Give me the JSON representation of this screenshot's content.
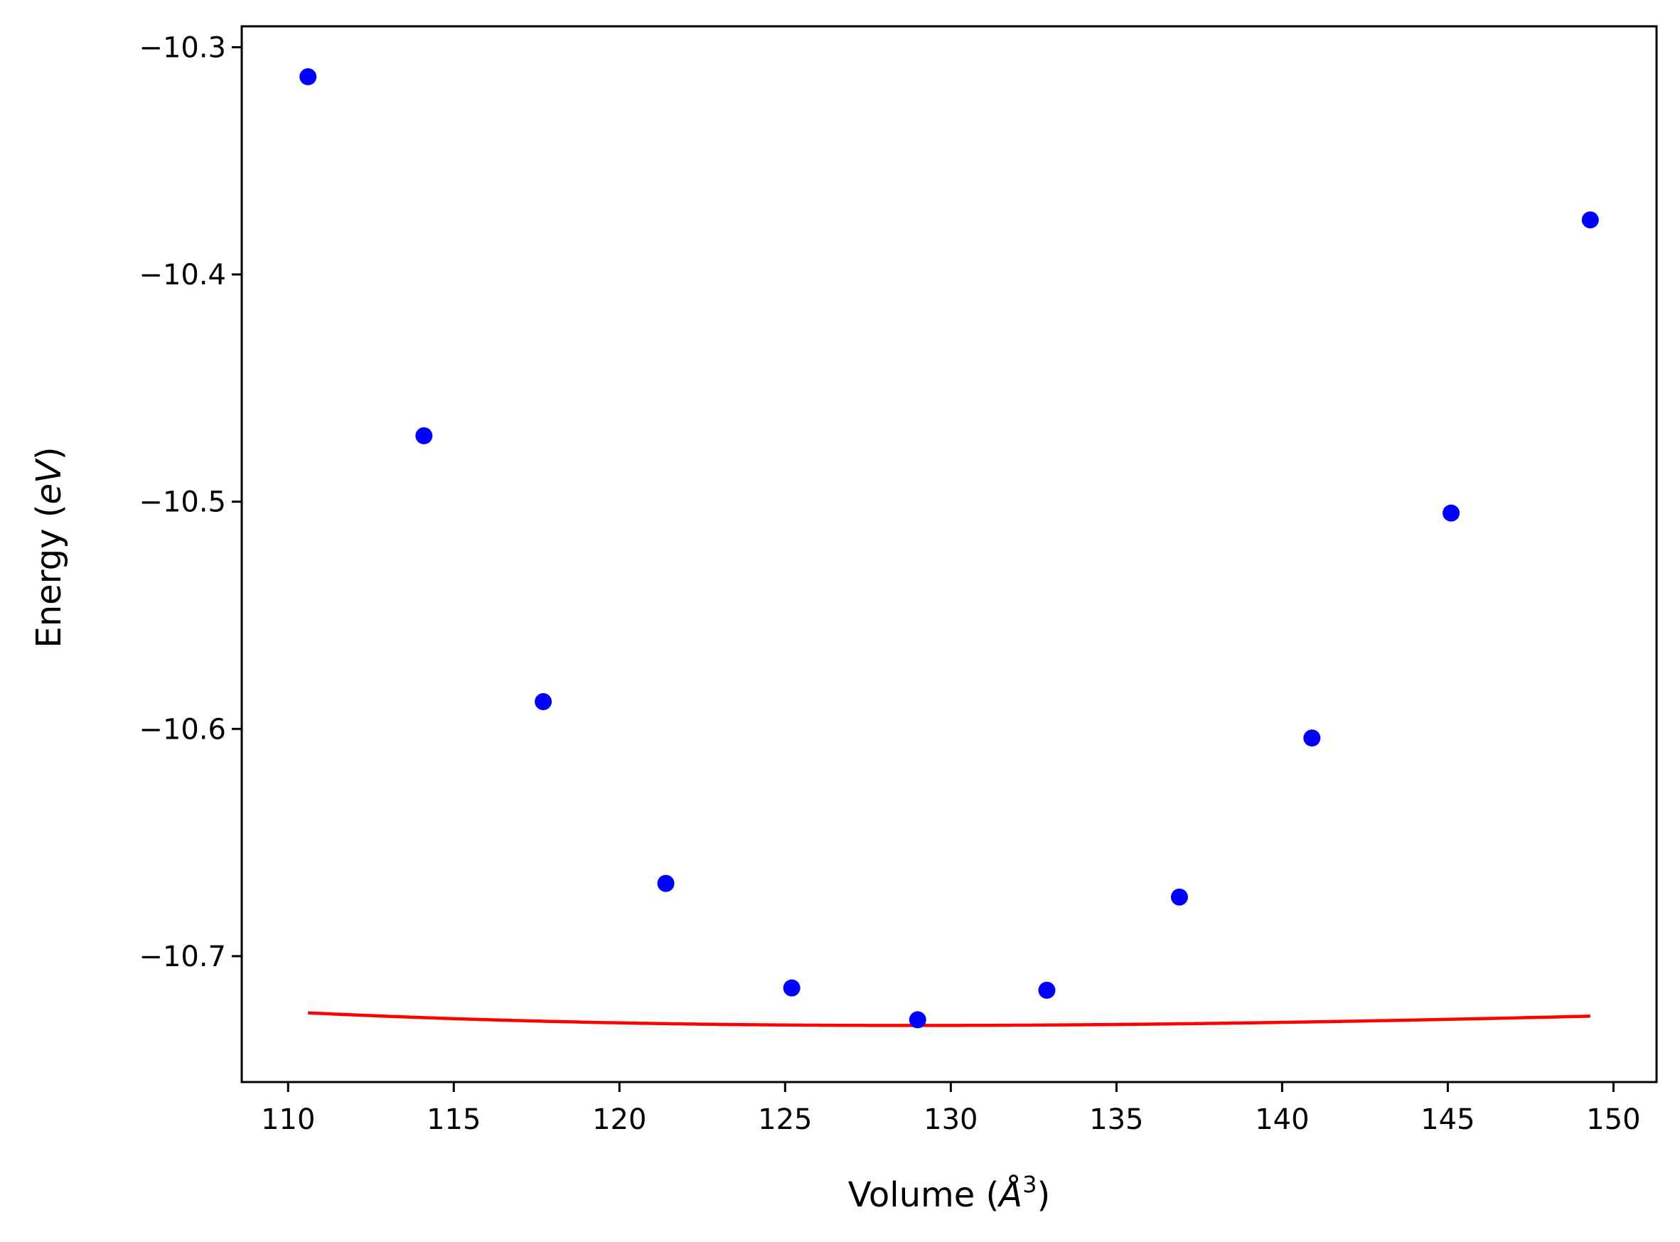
{
  "chart_data": {
    "type": "scatter",
    "xlabel_main": "Volume (",
    "xlabel_symbol": "Å",
    "xlabel_exp": "3",
    "xlabel_close": ")",
    "ylabel_main": "Energy (",
    "ylabel_symbol": "eV",
    "ylabel_close": ")",
    "xlim": [
      108.6,
      151.3
    ],
    "ylim": [
      -10.7554,
      -10.2908
    ],
    "xticks": [
      110,
      115,
      120,
      125,
      130,
      135,
      140,
      145,
      150
    ],
    "xtick_labels": [
      "110",
      "115",
      "120",
      "125",
      "130",
      "135",
      "140",
      "145",
      "150"
    ],
    "yticks": [
      -10.3,
      -10.4,
      -10.5,
      -10.6,
      -10.7
    ],
    "ytick_labels": [
      "−10.3",
      "−10.4",
      "−10.5",
      "−10.6",
      "−10.7"
    ],
    "grid": false,
    "series": [
      {
        "kind": "points",
        "color": "#0000ff",
        "x": [
          110.6,
          114.1,
          117.7,
          121.4,
          125.2,
          129.0,
          132.9,
          136.9,
          140.9,
          145.1,
          149.3
        ],
        "y": [
          -10.313,
          -10.471,
          -10.588,
          -10.668,
          -10.714,
          -10.728,
          -10.715,
          -10.674,
          -10.604,
          -10.505,
          -10.376
        ]
      },
      {
        "kind": "fit-line",
        "color": "#ff0000",
        "x_min": 110.6,
        "x_max": 149.3,
        "v0": 128.9,
        "e0": -10.7305,
        "b_eV_per_A3": 0.00328,
        "bp": 4.2
      }
    ]
  }
}
